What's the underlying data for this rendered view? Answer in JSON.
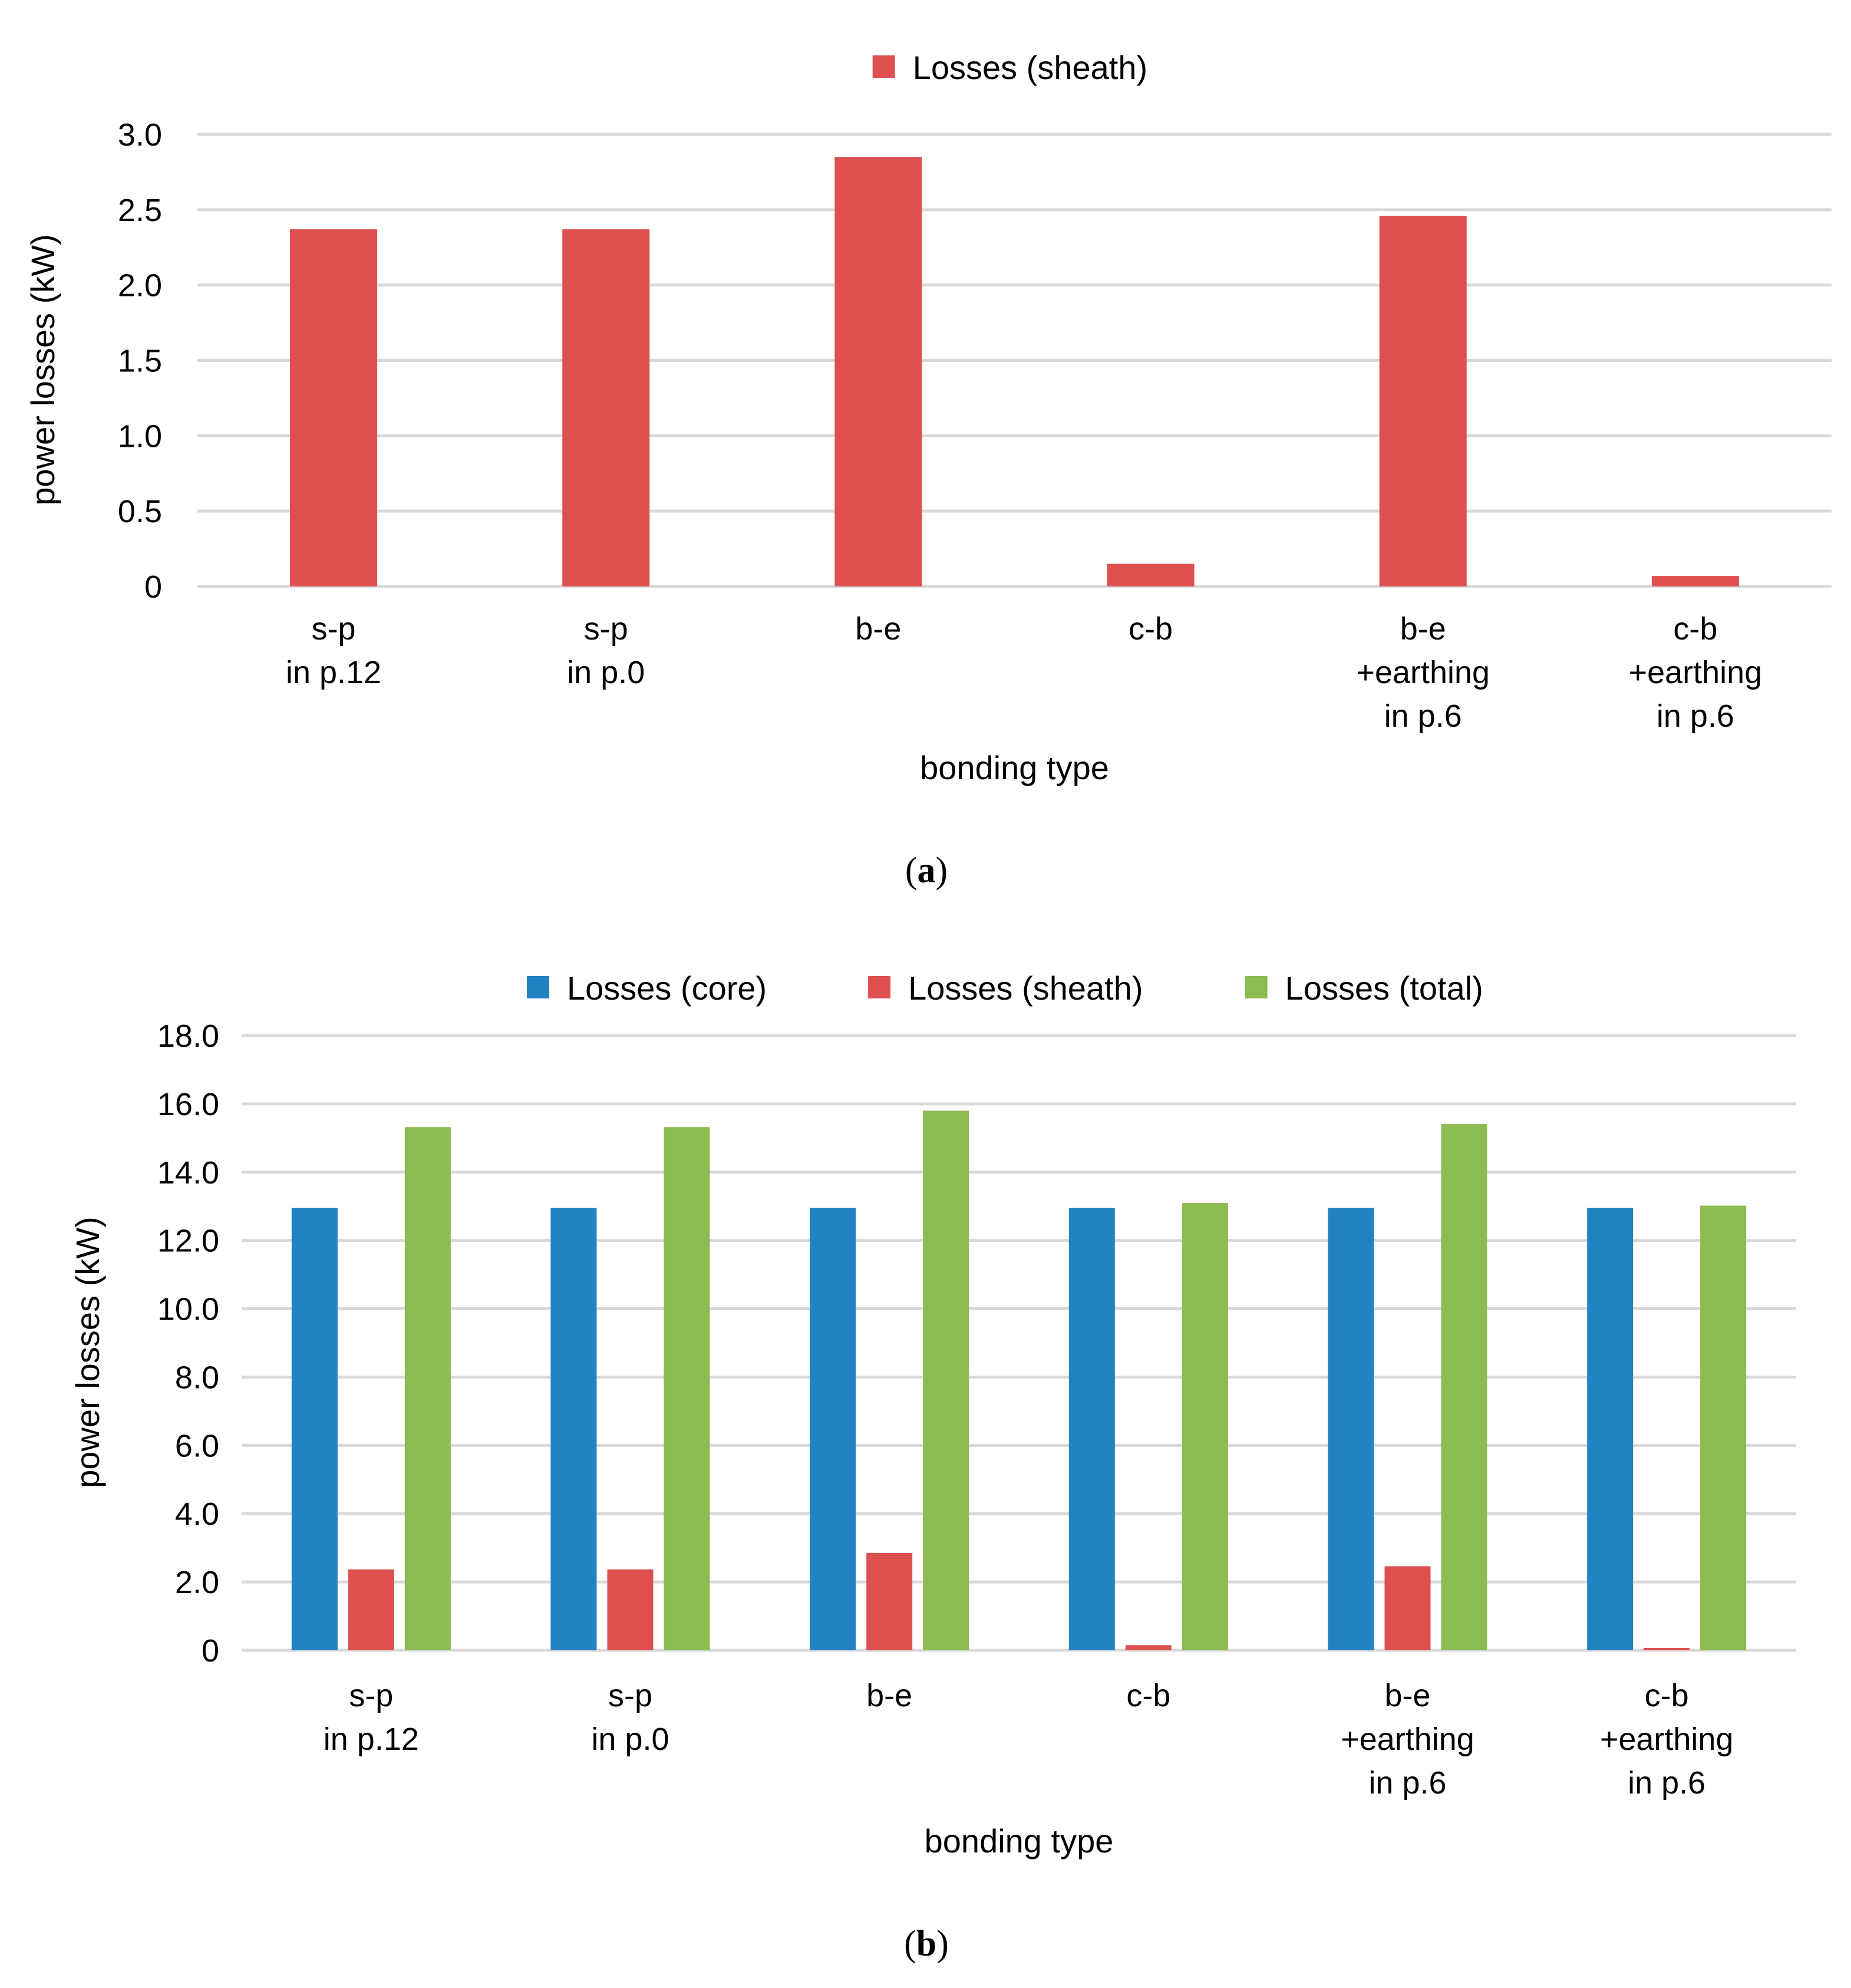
{
  "colors": {
    "core": "#2382c2",
    "sheath": "#de4f4f",
    "total": "#8cbb52",
    "grid": "#d9d9d9",
    "text": "#000000"
  },
  "chart_data": [
    {
      "id": "a",
      "type": "bar",
      "caption": "a",
      "legend_position": "top-center",
      "legend": [
        "Losses (sheath)"
      ],
      "xlabel": "bonding type",
      "ylabel": "power losses (kW)",
      "ylim": [
        0,
        3.0
      ],
      "yticks": [
        "0",
        "0.5",
        "1.0",
        "1.5",
        "2.0",
        "2.5",
        "3.0"
      ],
      "ytick_values": [
        0,
        0.5,
        1.0,
        1.5,
        2.0,
        2.5,
        3.0
      ],
      "grid": true,
      "categories": [
        [
          "s-p",
          "in p.12"
        ],
        [
          "s-p",
          "in p.0"
        ],
        [
          "b-e"
        ],
        [
          "c-b"
        ],
        [
          "b-e",
          "+earthing",
          "in p.6"
        ],
        [
          "c-b",
          "+earthing",
          "in p.6"
        ]
      ],
      "series": [
        {
          "name": "Losses (sheath)",
          "color_key": "sheath",
          "values": [
            2.37,
            2.37,
            2.85,
            0.15,
            2.46,
            0.07
          ]
        }
      ]
    },
    {
      "id": "b",
      "type": "bar",
      "caption": "b",
      "legend_position": "top-center",
      "legend": [
        "Losses (core)",
        "Losses (sheath)",
        "Losses (total)"
      ],
      "xlabel": "bonding type",
      "ylabel": "power losses (kW)",
      "ylim": [
        0,
        18.0
      ],
      "yticks": [
        "0",
        "2.0",
        "4.0",
        "6.0",
        "8.0",
        "10.0",
        "12.0",
        "14.0",
        "16.0",
        "18.0"
      ],
      "ytick_values": [
        0,
        2,
        4,
        6,
        8,
        10,
        12,
        14,
        16,
        18
      ],
      "grid": true,
      "categories": [
        [
          "s-p",
          "in p.12"
        ],
        [
          "s-p",
          "in p.0"
        ],
        [
          "b-e"
        ],
        [
          "c-b"
        ],
        [
          "b-e",
          "+earthing",
          "in p.6"
        ],
        [
          "c-b",
          "+earthing",
          "in p.6"
        ]
      ],
      "series": [
        {
          "name": "Losses (core)",
          "color_key": "core",
          "values": [
            12.95,
            12.95,
            12.95,
            12.95,
            12.95,
            12.95
          ]
        },
        {
          "name": "Losses (sheath)",
          "color_key": "sheath",
          "values": [
            2.37,
            2.37,
            2.85,
            0.15,
            2.46,
            0.07
          ]
        },
        {
          "name": "Losses (total)",
          "color_key": "total",
          "values": [
            15.32,
            15.32,
            15.8,
            13.1,
            15.41,
            13.02
          ]
        }
      ]
    }
  ]
}
